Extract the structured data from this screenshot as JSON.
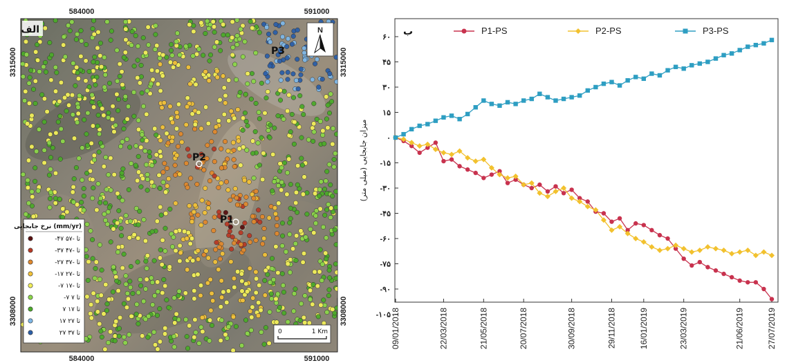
{
  "map": {
    "panel_label": "الف",
    "top_ticks": [
      "584000",
      "591000"
    ],
    "bottom_ticks": [
      "584000",
      "591000"
    ],
    "left_ticks": [
      "3315000",
      "3308000"
    ],
    "right_ticks": [
      "3315000",
      "3308000"
    ],
    "north_label": "N",
    "point_labels": [
      "P3",
      "P2",
      "P1"
    ],
    "scale_start": "0",
    "scale_end": "1 Km",
    "legend": {
      "title": "نرخ جابجایی (mm/yr)",
      "items": [
        {
          "label": "-۴۷ تا -۵۷",
          "color": "#5a1010"
        },
        {
          "label": "-۳۷ تا -۴۷",
          "color": "#b83a26"
        },
        {
          "label": "-۲۷ تا -۳۷",
          "color": "#e0892e"
        },
        {
          "label": "-۱۷ تا -۲۷",
          "color": "#f2c23a"
        },
        {
          "label": "-۷ تا -۱۷",
          "color": "#f2ef5a"
        },
        {
          "label": "-۷ تا ۷",
          "color": "#8cd64a"
        },
        {
          "label": "۷ تا ۱۷",
          "color": "#4caa2a"
        },
        {
          "label": "۱۷ تا ۲۷",
          "color": "#7fb7e6"
        },
        {
          "label": "۲۷ تا ۳۷",
          "color": "#2c5fa8"
        }
      ]
    }
  },
  "chart_data": {
    "type": "line",
    "panel_label": "ب",
    "ylabel": "میزان جابجایی (میلی متر)",
    "ylim": [
      -110,
      70
    ],
    "y_ticks": [
      60,
      45,
      30,
      15,
      0,
      -15,
      -30,
      -45,
      -60,
      -75,
      -90,
      -105
    ],
    "y_tick_labels": [
      "۶۰",
      "۴۵",
      "۳۰",
      "۱۵",
      "۰",
      "-۱۵",
      "-۳۰",
      "-۴۵",
      "-۶۰",
      "-۷۵",
      "-۹۰",
      "-۱۰۵"
    ],
    "x_tick_labels": [
      "09/01/2018",
      "22/03/2018",
      "21/05/2018",
      "20/07/2018",
      "30/09/2018",
      "29/11/2018",
      "16/01/2019",
      "23/03/2019",
      "21/06/2019",
      "27/07/2019"
    ],
    "x_tick_index": [
      0,
      6,
      11,
      16,
      22,
      27,
      31,
      36,
      43,
      47
    ],
    "n_points": 48,
    "legend_position": "top",
    "series": [
      {
        "name": "P1-PS",
        "color": "#c8324e",
        "marker": "circle",
        "values": [
          0,
          -2,
          -5,
          -9,
          -6,
          -3,
          -14,
          -13,
          -17,
          -19,
          -21,
          -24,
          -22,
          -20,
          -27,
          -25,
          -28,
          -30,
          -28,
          -32,
          -29,
          -33,
          -31,
          -36,
          -38,
          -44,
          -45,
          -50,
          -48,
          -55,
          -51,
          -52,
          -55,
          -58,
          -60,
          -66,
          -72,
          -76,
          -74,
          -77,
          -79,
          -81,
          -83,
          -85,
          -86,
          -86,
          -90,
          -96
        ]
      },
      {
        "name": "P2-PS",
        "color": "#f2c12e",
        "marker": "diamond",
        "values": [
          0,
          -1,
          -3,
          -5,
          -4,
          -7,
          -9,
          -10,
          -8,
          -12,
          -14,
          -13,
          -18,
          -22,
          -24,
          -23,
          -28,
          -27,
          -33,
          -35,
          -32,
          -30,
          -36,
          -38,
          -41,
          -43,
          -49,
          -55,
          -53,
          -57,
          -60,
          -62,
          -65,
          -67,
          -66,
          -64,
          -66,
          -68,
          -67,
          -65,
          -66,
          -67,
          -69,
          -68,
          -67,
          -70,
          -68,
          -70
        ]
      },
      {
        "name": "P3-PS",
        "color": "#2e9ec2",
        "marker": "square",
        "values": [
          0,
          2,
          5,
          7,
          8,
          10,
          12,
          13,
          11,
          14,
          18,
          22,
          20,
          19,
          21,
          20,
          22,
          23,
          26,
          24,
          22,
          23,
          24,
          25,
          28,
          30,
          32,
          33,
          31,
          34,
          36,
          35,
          38,
          37,
          40,
          42,
          41,
          43,
          44,
          45,
          47,
          49,
          50,
          52,
          54,
          55,
          56,
          58
        ]
      }
    ]
  }
}
